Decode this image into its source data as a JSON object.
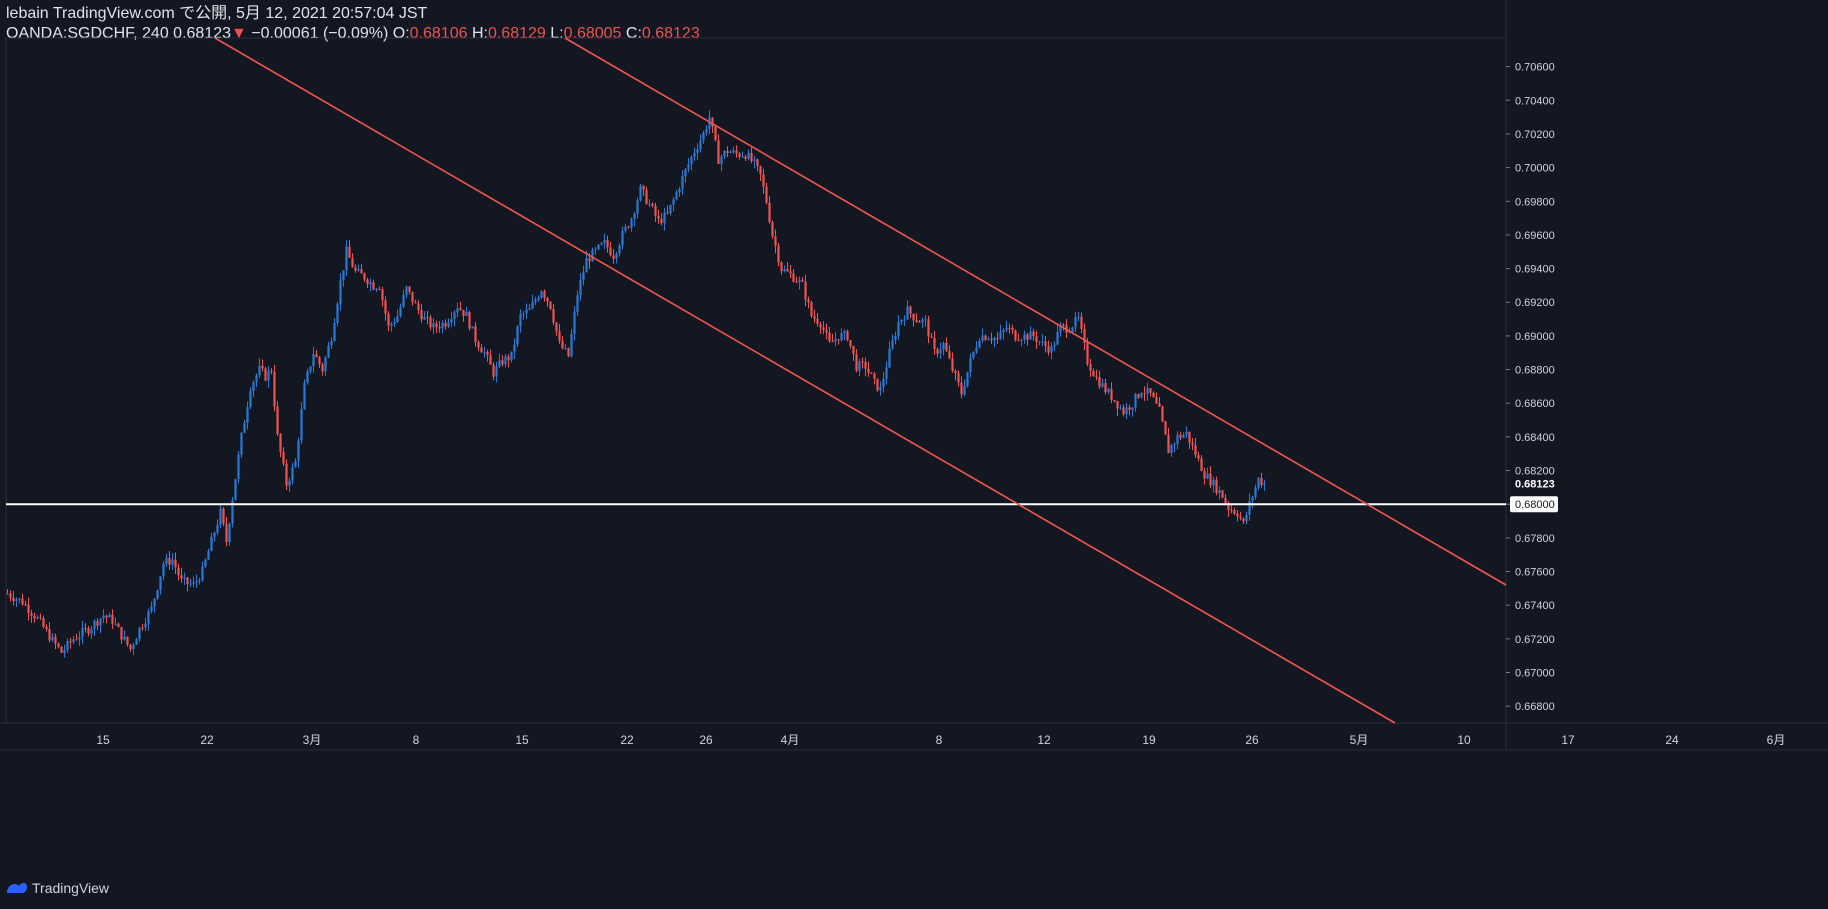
{
  "header": {
    "line1": "lebain TradingView.com で公開, 5月 12, 2021 20:57:04 JST",
    "symbol": "OANDA:SGDCHF, 240",
    "last": "0.68123",
    "change": "−0.00061 (−0.09%)",
    "o_label": "O:",
    "o_val": "0.68106",
    "h_label": "H:",
    "h_val": "0.68129",
    "l_label": "L:",
    "l_val": "0.68005",
    "c_label": "C:",
    "c_val": "0.68123"
  },
  "footer": {
    "brand": "TradingView"
  },
  "colors": {
    "bg": "#131722",
    "up": "#2979d6",
    "down": "#ef5350",
    "line": "#f2564e",
    "hline": "#ffffff"
  },
  "chart_data": {
    "type": "candlestick",
    "symbol": "OANDA:SGDCHF",
    "interval": "240",
    "y_ticks": [
      "0.70600",
      "0.70400",
      "0.70200",
      "0.70000",
      "0.69800",
      "0.69600",
      "0.69400",
      "0.69200",
      "0.69000",
      "0.68800",
      "0.68600",
      "0.68400",
      "0.68200",
      "0.68000",
      "0.67800",
      "0.67600",
      "0.67400",
      "0.67200",
      "0.67000",
      "0.66800"
    ],
    "ylim": [
      0.667,
      0.7077
    ],
    "x_ticks": [
      "15",
      "22",
      "3月",
      "8",
      "15",
      "22",
      "26",
      "4月",
      "8",
      "12",
      "19",
      "26",
      "5月",
      "10",
      "17",
      "24",
      "6月"
    ],
    "current_price_label": "0.68123",
    "hline_label": "0.68000",
    "hline_value": 0.68,
    "close_path": [
      [
        0,
        0.6747
      ],
      [
        5,
        0.6742
      ],
      [
        10,
        0.6732
      ],
      [
        15,
        0.6719
      ],
      [
        18,
        0.6712
      ],
      [
        22,
        0.672
      ],
      [
        27,
        0.6726
      ],
      [
        32,
        0.6734
      ],
      [
        35,
        0.6731
      ],
      [
        38,
        0.6722
      ],
      [
        41,
        0.6714
      ],
      [
        44,
        0.6726
      ],
      [
        48,
        0.6738
      ],
      [
        52,
        0.6765
      ],
      [
        55,
        0.6767
      ],
      [
        58,
        0.6754
      ],
      [
        62,
        0.6752
      ],
      [
        65,
        0.676
      ],
      [
        68,
        0.6778
      ],
      [
        71,
        0.6795
      ],
      [
        73,
        0.6778
      ],
      [
        75,
        0.6804
      ],
      [
        78,
        0.684
      ],
      [
        81,
        0.687
      ],
      [
        84,
        0.688
      ],
      [
        86,
        0.6876
      ],
      [
        88,
        0.688
      ],
      [
        90,
        0.684
      ],
      [
        93,
        0.6812
      ],
      [
        96,
        0.6825
      ],
      [
        99,
        0.687
      ],
      [
        102,
        0.689
      ],
      [
        105,
        0.688
      ],
      [
        108,
        0.69
      ],
      [
        111,
        0.6932
      ],
      [
        113,
        0.695
      ],
      [
        116,
        0.6938
      ],
      [
        119,
        0.6935
      ],
      [
        122,
        0.693
      ],
      [
        124,
        0.693
      ],
      [
        127,
        0.6905
      ],
      [
        130,
        0.6912
      ],
      [
        133,
        0.6928
      ],
      [
        136,
        0.6918
      ],
      [
        139,
        0.691
      ],
      [
        142,
        0.6905
      ],
      [
        146,
        0.6908
      ],
      [
        150,
        0.6918
      ],
      [
        153,
        0.6912
      ],
      [
        156,
        0.6898
      ],
      [
        159,
        0.689
      ],
      [
        162,
        0.6878
      ],
      [
        165,
        0.6885
      ],
      [
        168,
        0.6888
      ],
      [
        171,
        0.6912
      ],
      [
        174,
        0.6915
      ],
      [
        178,
        0.6928
      ],
      [
        181,
        0.6918
      ],
      [
        184,
        0.6895
      ],
      [
        187,
        0.6888
      ],
      [
        190,
        0.6925
      ],
      [
        193,
        0.6945
      ],
      [
        196,
        0.695
      ],
      [
        199,
        0.6955
      ],
      [
        202,
        0.6948
      ],
      [
        205,
        0.696
      ],
      [
        208,
        0.697
      ],
      [
        211,
        0.6987
      ],
      [
        214,
        0.6978
      ],
      [
        217,
        0.6968
      ],
      [
        220,
        0.6972
      ],
      [
        223,
        0.6985
      ],
      [
        226,
        0.6998
      ],
      [
        229,
        0.701
      ],
      [
        232,
        0.702
      ],
      [
        234,
        0.703
      ],
      [
        237,
        0.7005
      ],
      [
        240,
        0.701
      ],
      [
        243,
        0.7008
      ],
      [
        246,
        0.7008
      ],
      [
        249,
        0.7002
      ],
      [
        251,
        0.6995
      ],
      [
        253,
        0.698
      ],
      [
        255,
        0.696
      ],
      [
        258,
        0.694
      ],
      [
        262,
        0.6935
      ],
      [
        265,
        0.693
      ],
      [
        268,
        0.6912
      ],
      [
        271,
        0.6908
      ],
      [
        274,
        0.6895
      ],
      [
        277,
        0.69
      ],
      [
        280,
        0.69
      ],
      [
        283,
        0.6882
      ],
      [
        286,
        0.6882
      ],
      [
        289,
        0.6872
      ],
      [
        291,
        0.6868
      ],
      [
        294,
        0.689
      ],
      [
        297,
        0.6908
      ],
      [
        300,
        0.6915
      ],
      [
        303,
        0.691
      ],
      [
        306,
        0.6908
      ],
      [
        309,
        0.689
      ],
      [
        312,
        0.6895
      ],
      [
        315,
        0.688
      ],
      [
        318,
        0.6866
      ],
      [
        321,
        0.6885
      ],
      [
        324,
        0.69
      ],
      [
        327,
        0.69
      ],
      [
        330,
        0.6898
      ],
      [
        333,
        0.6905
      ],
      [
        336,
        0.69
      ],
      [
        339,
        0.69
      ],
      [
        342,
        0.69
      ],
      [
        345,
        0.6895
      ],
      [
        348,
        0.6892
      ],
      [
        351,
        0.6905
      ],
      [
        354,
        0.6905
      ],
      [
        357,
        0.691
      ],
      [
        360,
        0.6885
      ],
      [
        363,
        0.6875
      ],
      [
        366,
        0.6868
      ],
      [
        369,
        0.6862
      ],
      [
        372,
        0.6855
      ],
      [
        375,
        0.686
      ],
      [
        378,
        0.6868
      ],
      [
        381,
        0.6865
      ],
      [
        384,
        0.6855
      ],
      [
        387,
        0.6832
      ],
      [
        390,
        0.684
      ],
      [
        393,
        0.6842
      ],
      [
        396,
        0.683
      ],
      [
        399,
        0.6818
      ],
      [
        402,
        0.6812
      ],
      [
        405,
        0.6805
      ],
      [
        407,
        0.6798
      ],
      [
        410,
        0.6795
      ],
      [
        412,
        0.6788
      ],
      [
        414,
        0.68
      ],
      [
        417,
        0.6815
      ],
      [
        419,
        0.6812
      ]
    ],
    "channel_upper": [
      [
        0.7162,
        0.7212
      ],
      [
        1.0,
        1.0
      ]
    ],
    "notes": "Two parallel descending red trend lines forming a channel; horizontal white line at 0.68000."
  }
}
